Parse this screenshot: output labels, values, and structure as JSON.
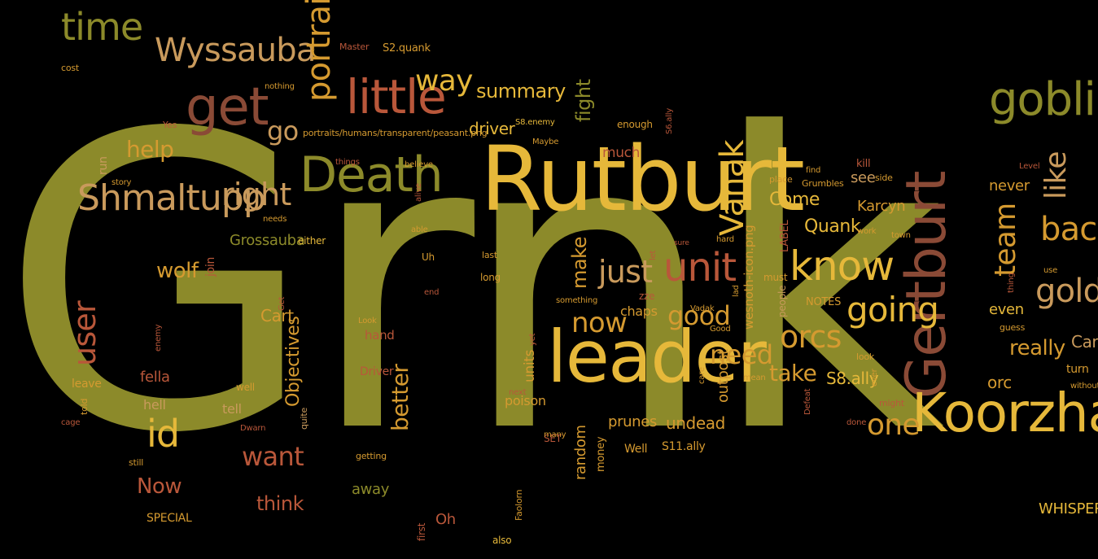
{
  "palette": {
    "background": "#000000",
    "olive": "#8c8a2a",
    "gold": "#e6b83a",
    "amber": "#d59a30",
    "tan": "#c99a5c",
    "rust": "#b9573a",
    "brown": "#8a4a36"
  },
  "words": [
    {
      "text": "Grnk",
      "color": "olive"
    },
    {
      "text": "Rutburt",
      "color": "gold"
    },
    {
      "text": "leader",
      "color": "gold"
    },
    {
      "text": "Gertburt",
      "color": "brown"
    },
    {
      "text": "Koorzhar",
      "color": "gold"
    },
    {
      "text": "Death",
      "color": "olive"
    },
    {
      "text": "Shmaltupp",
      "color": "tan"
    },
    {
      "text": "goblin",
      "color": "olive"
    },
    {
      "text": "get",
      "color": "brown"
    },
    {
      "text": "little",
      "color": "rust"
    },
    {
      "text": "Wyssauba",
      "color": "tan"
    },
    {
      "text": "Vanak",
      "color": "gold"
    },
    {
      "text": "know",
      "color": "gold"
    },
    {
      "text": "unit",
      "color": "rust"
    },
    {
      "text": "just",
      "color": "tan"
    },
    {
      "text": "team",
      "color": "amber"
    },
    {
      "text": "time",
      "color": "olive"
    },
    {
      "text": "portrait",
      "color": "amber"
    },
    {
      "text": "way",
      "color": "gold"
    },
    {
      "text": "going",
      "color": "gold"
    },
    {
      "text": "like",
      "color": "tan"
    },
    {
      "text": "back",
      "color": "amber"
    },
    {
      "text": "orcs",
      "color": "amber"
    },
    {
      "text": "gold",
      "color": "tan"
    },
    {
      "text": "right",
      "color": "tan"
    },
    {
      "text": "user",
      "color": "rust"
    },
    {
      "text": "id",
      "color": "gold"
    },
    {
      "text": "need",
      "color": "amber"
    },
    {
      "text": "now",
      "color": "amber"
    },
    {
      "text": "good",
      "color": "amber"
    },
    {
      "text": "one",
      "color": "amber"
    },
    {
      "text": "go",
      "color": "tan"
    },
    {
      "text": "help",
      "color": "amber"
    },
    {
      "text": "summary",
      "color": "gold"
    },
    {
      "text": "fight",
      "color": "olive"
    },
    {
      "text": "make",
      "color": "amber"
    },
    {
      "text": "take",
      "color": "amber"
    },
    {
      "text": "really",
      "color": "amber"
    },
    {
      "text": "want",
      "color": "rust"
    },
    {
      "text": "better",
      "color": "amber"
    },
    {
      "text": "Objectives",
      "color": "amber"
    },
    {
      "text": "wolf",
      "color": "amber"
    },
    {
      "text": "Now",
      "color": "rust"
    },
    {
      "text": "think",
      "color": "rust"
    },
    {
      "text": "driver",
      "color": "gold"
    },
    {
      "text": "Quank",
      "color": "gold"
    },
    {
      "text": "Come",
      "color": "gold"
    },
    {
      "text": "S8.ally",
      "color": "gold"
    },
    {
      "text": "Grossauba",
      "color": "olive"
    },
    {
      "text": "Cart",
      "color": "amber"
    },
    {
      "text": "Cart",
      "color": "tan"
    },
    {
      "text": "undead",
      "color": "amber"
    },
    {
      "text": "prunes",
      "color": "amber"
    },
    {
      "text": "away",
      "color": "olive"
    },
    {
      "text": "random",
      "color": "amber"
    },
    {
      "text": "outpost",
      "color": "amber"
    },
    {
      "text": "wesnoth-icon.png",
      "color": "amber"
    },
    {
      "text": "Karcyn",
      "color": "amber"
    },
    {
      "text": "never",
      "color": "amber"
    },
    {
      "text": "even",
      "color": "gold"
    },
    {
      "text": "orc",
      "color": "amber"
    },
    {
      "text": "see",
      "color": "tan"
    },
    {
      "text": "units",
      "color": "amber"
    },
    {
      "text": "much",
      "color": "rust"
    },
    {
      "text": "chaps",
      "color": "amber"
    },
    {
      "text": "poison",
      "color": "amber"
    },
    {
      "text": "fella",
      "color": "rust"
    },
    {
      "text": "hand",
      "color": "rust"
    },
    {
      "text": "hell",
      "color": "tan"
    },
    {
      "text": "tell",
      "color": "tan"
    },
    {
      "text": "leave",
      "color": "amber"
    },
    {
      "text": "run",
      "color": "tan"
    },
    {
      "text": "join",
      "color": "rust"
    },
    {
      "text": "WHISPER",
      "color": "gold"
    },
    {
      "text": "S2.quank",
      "color": "amber"
    },
    {
      "text": "S11.ally",
      "color": "amber"
    },
    {
      "text": "money",
      "color": "amber"
    },
    {
      "text": "Well",
      "color": "amber"
    },
    {
      "text": "Oh",
      "color": "rust"
    },
    {
      "text": "SPECIAL",
      "color": "amber"
    },
    {
      "text": "turn",
      "color": "amber"
    },
    {
      "text": "Driver",
      "color": "rust"
    },
    {
      "text": "Grumbles",
      "color": "amber"
    },
    {
      "text": "portraits/humans/transparent/peasant.png",
      "color": "amber"
    },
    {
      "text": "either",
      "color": "gold"
    },
    {
      "text": "well",
      "color": "amber"
    },
    {
      "text": "NOTES",
      "color": "amber"
    },
    {
      "text": "people",
      "color": "tan"
    },
    {
      "text": "must",
      "color": "amber"
    },
    {
      "text": "enough",
      "color": "amber"
    },
    {
      "text": "kill",
      "color": "rust"
    },
    {
      "text": "LABEL",
      "color": "rust"
    },
    {
      "text": "Master",
      "color": "rust"
    },
    {
      "text": "last",
      "color": "amber"
    },
    {
      "text": "long",
      "color": "amber"
    },
    {
      "text": "Uh",
      "color": "amber"
    },
    {
      "text": "getting",
      "color": "amber"
    },
    {
      "text": "SET",
      "color": "rust"
    },
    {
      "text": "many",
      "color": "amber"
    },
    {
      "text": "still",
      "color": "amber"
    },
    {
      "text": "told",
      "color": "amber"
    },
    {
      "text": "cage",
      "color": "rust"
    },
    {
      "text": "S8.enemy",
      "color": "gold"
    },
    {
      "text": "S6.ally",
      "color": "rust"
    },
    {
      "text": "place",
      "color": "amber"
    },
    {
      "text": "side",
      "color": "amber"
    },
    {
      "text": "work",
      "color": "amber"
    },
    {
      "text": "town",
      "color": "amber"
    },
    {
      "text": "hard",
      "color": "amber"
    },
    {
      "text": "Vadak",
      "color": "amber"
    },
    {
      "text": "Good",
      "color": "amber"
    },
    {
      "text": "look",
      "color": "amber"
    },
    {
      "text": "guess",
      "color": "amber"
    },
    {
      "text": "use",
      "color": "amber"
    },
    {
      "text": "without",
      "color": "amber"
    },
    {
      "text": "Level",
      "color": "rust"
    },
    {
      "text": "might",
      "color": "rust"
    },
    {
      "text": "done",
      "color": "rust"
    },
    {
      "text": "Defeat",
      "color": "rust"
    },
    {
      "text": "ever",
      "color": "amber"
    },
    {
      "text": "mean",
      "color": "amber"
    },
    {
      "text": "care",
      "color": "amber"
    },
    {
      "text": "next",
      "color": "rust"
    },
    {
      "text": "also",
      "color": "gold"
    },
    {
      "text": "first",
      "color": "rust"
    },
    {
      "text": "Faolorn",
      "color": "amber"
    },
    {
      "text": "quite",
      "color": "tan"
    },
    {
      "text": "Dwarn",
      "color": "rust"
    },
    {
      "text": "enemy",
      "color": "rust"
    },
    {
      "text": "Get",
      "color": "rust"
    },
    {
      "text": "Look",
      "color": "amber"
    },
    {
      "text": "needs",
      "color": "amber"
    },
    {
      "text": "able",
      "color": "amber"
    },
    {
      "text": "end",
      "color": "rust"
    },
    {
      "text": "alive",
      "color": "rust"
    },
    {
      "text": "believe",
      "color": "amber"
    },
    {
      "text": "things",
      "color": "rust"
    },
    {
      "text": "nothing",
      "color": "amber"
    },
    {
      "text": "story",
      "color": "amber"
    },
    {
      "text": "Yes",
      "color": "rust"
    },
    {
      "text": "cost",
      "color": "amber"
    },
    {
      "text": "Maybe",
      "color": "amber"
    },
    {
      "text": "something",
      "color": "amber"
    },
    {
      "text": "zze",
      "color": "rust"
    },
    {
      "text": "sure",
      "color": "rust"
    },
    {
      "text": "let",
      "color": "rust"
    },
    {
      "text": "find",
      "color": "amber"
    },
    {
      "text": "thing",
      "color": "rust"
    },
    {
      "text": "lad",
      "color": "amber"
    },
    {
      "text": "yet",
      "color": "rust"
    }
  ]
}
